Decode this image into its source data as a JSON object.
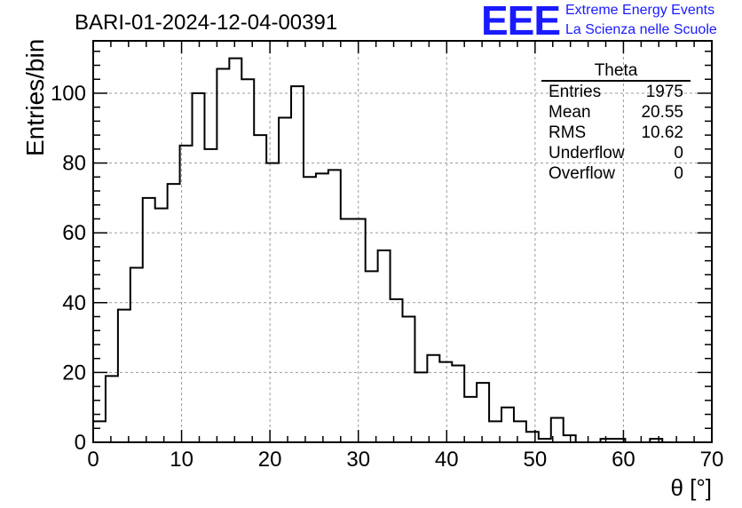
{
  "title": "BARI-01-2024-12-04-00391",
  "logo": {
    "text": "EEE",
    "line1": "Extreme Energy Events",
    "line2": "La Scienza nelle Scuole",
    "color": "#1a1aff"
  },
  "stats": {
    "name": "Theta",
    "rows": [
      {
        "label": "Entries",
        "value": "1975"
      },
      {
        "label": "Mean",
        "value": "20.55"
      },
      {
        "label": "RMS",
        "value": "10.62"
      },
      {
        "label": "Underflow",
        "value": "0"
      },
      {
        "label": "Overflow",
        "value": "0"
      }
    ]
  },
  "chart_data": {
    "type": "histogram",
    "title": "BARI-01-2024-12-04-00391",
    "xlabel": "θ [°]",
    "ylabel": "Entries/bin",
    "xlim": [
      0,
      70
    ],
    "ylim": [
      0,
      115
    ],
    "bin_width": 1.4,
    "xticks": [
      0,
      10,
      20,
      30,
      40,
      50,
      60,
      70
    ],
    "yticks": [
      0,
      20,
      40,
      60,
      80,
      100
    ],
    "grid": true,
    "values": [
      6,
      19,
      38,
      50,
      70,
      67,
      74,
      85,
      100,
      84,
      107,
      110,
      104,
      88,
      80,
      93,
      102,
      76,
      77,
      78,
      64,
      64,
      49,
      55,
      41,
      36,
      20,
      25,
      23,
      22,
      13,
      17,
      6,
      10,
      6,
      3,
      1,
      7,
      2,
      0,
      0,
      1,
      1,
      0,
      0,
      1,
      0,
      0,
      0,
      0
    ]
  }
}
